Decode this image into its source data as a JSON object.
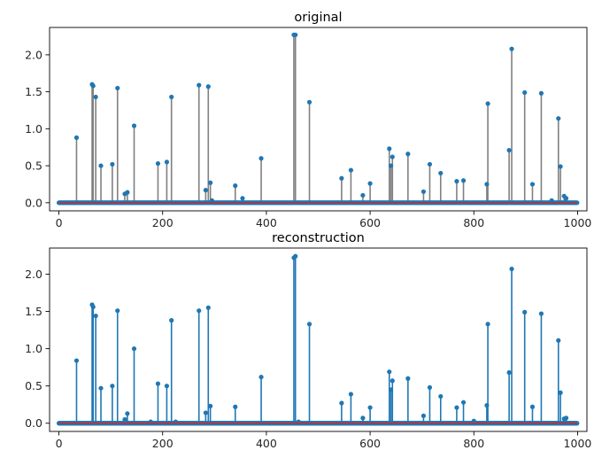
{
  "chart_data": [
    {
      "type": "stem",
      "title": "original",
      "xlabel": "",
      "ylabel": "",
      "xlim": [
        -18,
        1018
      ],
      "ylim": [
        -0.11,
        2.37
      ],
      "xticks": [
        0,
        200,
        400,
        600,
        800,
        1000
      ],
      "xtick_labels": [
        "0",
        "200",
        "400",
        "600",
        "800",
        "1000"
      ],
      "yticks": [
        0.0,
        0.5,
        1.0,
        1.5,
        2.0
      ],
      "ytick_labels": [
        "0.0",
        "0.5",
        "1.0",
        "1.5",
        "2.0"
      ],
      "stem_color": "#808080",
      "marker_color": "#1f77b4",
      "baseline_color": "#d62728",
      "n_points": 1000,
      "nonzero_points": [
        [
          34,
          0.88
        ],
        [
          64,
          1.6
        ],
        [
          66,
          1.58
        ],
        [
          71,
          1.43
        ],
        [
          81,
          0.5
        ],
        [
          103,
          0.52
        ],
        [
          113,
          1.55
        ],
        [
          127,
          0.12
        ],
        [
          132,
          0.14
        ],
        [
          145,
          1.04
        ],
        [
          191,
          0.53
        ],
        [
          208,
          0.55
        ],
        [
          217,
          1.43
        ],
        [
          270,
          1.59
        ],
        [
          283,
          0.17
        ],
        [
          288,
          1.57
        ],
        [
          292,
          0.27
        ],
        [
          295,
          0.03
        ],
        [
          340,
          0.23
        ],
        [
          354,
          0.06
        ],
        [
          390,
          0.6
        ],
        [
          453,
          2.27
        ],
        [
          456,
          2.27
        ],
        [
          483,
          1.36
        ],
        [
          545,
          0.33
        ],
        [
          563,
          0.44
        ],
        [
          586,
          0.1
        ],
        [
          600,
          0.26
        ],
        [
          637,
          0.73
        ],
        [
          640,
          0.5
        ],
        [
          643,
          0.62
        ],
        [
          673,
          0.66
        ],
        [
          703,
          0.15
        ],
        [
          715,
          0.52
        ],
        [
          736,
          0.4
        ],
        [
          767,
          0.29
        ],
        [
          780,
          0.3
        ],
        [
          825,
          0.25
        ],
        [
          827,
          1.34
        ],
        [
          868,
          0.71
        ],
        [
          873,
          2.08
        ],
        [
          898,
          1.49
        ],
        [
          913,
          0.25
        ],
        [
          930,
          1.48
        ],
        [
          950,
          0.03
        ],
        [
          963,
          1.14
        ],
        [
          967,
          0.49
        ],
        [
          974,
          0.09
        ],
        [
          978,
          0.06
        ]
      ]
    },
    {
      "type": "stem",
      "title": "reconstruction",
      "xlabel": "",
      "ylabel": "",
      "xlim": [
        -18,
        1018
      ],
      "ylim": [
        -0.11,
        2.35
      ],
      "xticks": [
        0,
        200,
        400,
        600,
        800,
        1000
      ],
      "xtick_labels": [
        "0",
        "200",
        "400",
        "600",
        "800",
        "1000"
      ],
      "yticks": [
        0.0,
        0.5,
        1.0,
        1.5,
        2.0
      ],
      "ytick_labels": [
        "0.0",
        "0.5",
        "1.0",
        "1.5",
        "2.0"
      ],
      "stem_color": "#1f77b4",
      "marker_color": "#1f77b4",
      "baseline_color": "#d62728",
      "n_points": 1000,
      "nonzero_points": [
        [
          34,
          0.84
        ],
        [
          64,
          1.59
        ],
        [
          66,
          1.56
        ],
        [
          71,
          1.44
        ],
        [
          81,
          0.47
        ],
        [
          103,
          0.5
        ],
        [
          113,
          1.51
        ],
        [
          127,
          0.05
        ],
        [
          132,
          0.13
        ],
        [
          145,
          1.0
        ],
        [
          177,
          0.02
        ],
        [
          191,
          0.53
        ],
        [
          208,
          0.5
        ],
        [
          217,
          1.38
        ],
        [
          225,
          0.02
        ],
        [
          270,
          1.51
        ],
        [
          283,
          0.14
        ],
        [
          288,
          1.55
        ],
        [
          292,
          0.23
        ],
        [
          340,
          0.22
        ],
        [
          390,
          0.62
        ],
        [
          453,
          2.22
        ],
        [
          456,
          2.24
        ],
        [
          462,
          0.02
        ],
        [
          483,
          1.33
        ],
        [
          545,
          0.27
        ],
        [
          563,
          0.39
        ],
        [
          586,
          0.07
        ],
        [
          600,
          0.21
        ],
        [
          637,
          0.69
        ],
        [
          640,
          0.45
        ],
        [
          643,
          0.57
        ],
        [
          673,
          0.6
        ],
        [
          703,
          0.1
        ],
        [
          715,
          0.48
        ],
        [
          736,
          0.36
        ],
        [
          767,
          0.21
        ],
        [
          780,
          0.28
        ],
        [
          800,
          0.03
        ],
        [
          825,
          0.24
        ],
        [
          827,
          1.33
        ],
        [
          868,
          0.68
        ],
        [
          873,
          2.07
        ],
        [
          898,
          1.49
        ],
        [
          913,
          0.22
        ],
        [
          930,
          1.47
        ],
        [
          963,
          1.11
        ],
        [
          967,
          0.41
        ],
        [
          974,
          0.06
        ],
        [
          978,
          0.07
        ]
      ]
    }
  ]
}
